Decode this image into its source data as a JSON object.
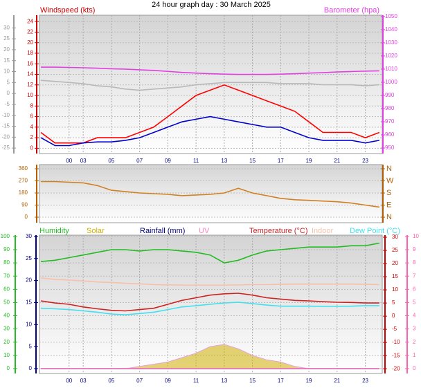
{
  "chart_data": [
    {
      "type": "line",
      "title": "24 hour graph day : 30 March 2025",
      "ylabel": "Windspeed (kts)",
      "y2label": "Barometer (hpa)",
      "x": [
        -2,
        -1,
        0,
        1,
        2,
        3,
        4,
        5,
        6,
        7,
        8,
        9,
        10,
        11,
        12,
        13,
        14,
        15,
        16,
        17,
        18,
        19,
        20,
        21,
        22
      ],
      "xlim": [
        -2.1,
        22.2
      ],
      "xticks": [
        {
          "value": 0,
          "label": "00"
        },
        {
          "value": 1,
          "label": "03"
        },
        {
          "value": 3,
          "label": "05"
        },
        {
          "value": 5,
          "label": "07"
        },
        {
          "value": 7,
          "label": "09"
        },
        {
          "value": 9,
          "label": "11"
        },
        {
          "value": 11,
          "label": "13"
        },
        {
          "value": 13,
          "label": "15"
        },
        {
          "value": 15,
          "label": "17"
        },
        {
          "value": 17,
          "label": "19"
        },
        {
          "value": 19,
          "label": "21"
        },
        {
          "value": 21,
          "label": "23"
        }
      ],
      "ylim": [
        -1,
        25.2
      ],
      "yticks": [
        0,
        2,
        4,
        6,
        8,
        10,
        12,
        14,
        16,
        18,
        20,
        22,
        24
      ],
      "ycolor": "#cc0000",
      "y2lim": [
        945.8,
        1051
      ],
      "y2ticks": [
        950,
        960,
        970,
        980,
        990,
        1000,
        1010,
        1020,
        1030,
        1040,
        1050
      ],
      "y2color": "#e040e0",
      "y3lim": [
        -27.5,
        35.8
      ],
      "y3ticks": [
        -25,
        -20,
        -15,
        -10,
        -5,
        0,
        5,
        10,
        15,
        20,
        25,
        30
      ],
      "y3color": "#999999",
      "grid": true,
      "series": [
        {
          "color": "#b8b8b8",
          "axis": "y3",
          "values": [
            6,
            5.5,
            5,
            4.5,
            3.5,
            3,
            2,
            1.5,
            2,
            2.5,
            3,
            4,
            4.5,
            5,
            5,
            5,
            5,
            4.5,
            4.5,
            4.5,
            4,
            4,
            4,
            3.5,
            4
          ]
        },
        {
          "color": "#e040e0",
          "axis": "y2",
          "values": [
            1011.5,
            1011.5,
            1011.3,
            1011,
            1010.7,
            1010.3,
            1010,
            1009.5,
            1009,
            1008.3,
            1007.5,
            1007,
            1006.5,
            1006.2,
            1006,
            1006,
            1006,
            1006.2,
            1006.5,
            1007,
            1007.3,
            1007.8,
            1008.2,
            1008.5,
            1008.7
          ]
        },
        {
          "color": "#ff0000",
          "values": [
            3,
            1,
            1,
            1,
            2,
            2,
            2,
            3,
            4,
            6,
            8,
            10,
            11,
            12,
            11,
            10,
            9,
            8,
            7,
            5,
            3,
            3,
            3,
            2,
            3
          ]
        },
        {
          "color": "#0000cc",
          "values": [
            2,
            0.5,
            0.5,
            1,
            1.2,
            1.2,
            1.5,
            2,
            3,
            4,
            5,
            5.5,
            6,
            5.5,
            5,
            4.5,
            4,
            4,
            3,
            2,
            1.5,
            1.5,
            1.5,
            1,
            1.5
          ]
        }
      ]
    },
    {
      "type": "line",
      "x": [
        -2,
        -1,
        0,
        1,
        2,
        3,
        4,
        5,
        6,
        7,
        8,
        9,
        10,
        11,
        12,
        13,
        14,
        15,
        16,
        17,
        18,
        19,
        20,
        21,
        22
      ],
      "xlim": [
        -2.1,
        22.2
      ],
      "ylim": [
        -41,
        391
      ],
      "yticks": [
        0,
        90,
        180,
        270,
        360
      ],
      "ycolor": "#b06000",
      "y2lim": [
        -41,
        391
      ],
      "y2ticks": [
        {
          "value": 0,
          "label": "N"
        },
        {
          "value": 90,
          "label": "E"
        },
        {
          "value": 180,
          "label": "S"
        },
        {
          "value": 270,
          "label": "W"
        },
        {
          "value": 360,
          "label": "N"
        }
      ],
      "y2color": "#b06000",
      "grid": true,
      "series": [
        {
          "color": "#d08020",
          "values": [
            265,
            265,
            260,
            255,
            235,
            200,
            190,
            180,
            175,
            170,
            160,
            165,
            170,
            180,
            215,
            180,
            160,
            140,
            130,
            125,
            120,
            115,
            105,
            90,
            75
          ]
        }
      ]
    },
    {
      "type": "line",
      "x": [
        -2,
        -1,
        0,
        1,
        2,
        3,
        4,
        5,
        6,
        7,
        8,
        9,
        10,
        11,
        12,
        13,
        14,
        15,
        16,
        17,
        18,
        19,
        20,
        21,
        22
      ],
      "xlim": [
        -2.1,
        22.2
      ],
      "xticks": [
        {
          "value": 0,
          "label": "00"
        },
        {
          "value": 1,
          "label": "03"
        },
        {
          "value": 3,
          "label": "05"
        },
        {
          "value": 5,
          "label": "07"
        },
        {
          "value": 7,
          "label": "09"
        },
        {
          "value": 9,
          "label": "11"
        },
        {
          "value": 11,
          "label": "13"
        },
        {
          "value": 13,
          "label": "15"
        },
        {
          "value": 15,
          "label": "17"
        },
        {
          "value": 17,
          "label": "19"
        },
        {
          "value": 19,
          "label": "21"
        },
        {
          "value": 21,
          "label": "23"
        }
      ],
      "ylim": [
        -3.7,
        101
      ],
      "yticks": [
        0,
        10,
        20,
        30,
        40,
        50,
        60,
        70,
        80,
        90,
        100
      ],
      "ycolor": "#22bb22",
      "y2lim": [
        -1.1,
        30.3
      ],
      "y2ticks": [
        0,
        5,
        10,
        15,
        20,
        25,
        30
      ],
      "y2color": "#000080",
      "y3lim": [
        -21.8,
        30.8
      ],
      "y3ticks": [
        -20,
        -15,
        -10,
        -5,
        0,
        5,
        10,
        15,
        20,
        25,
        30
      ],
      "y3color": "#cc0000",
      "y4lim": [
        -0.37,
        10.1
      ],
      "y4ticks": [
        0,
        1,
        2,
        3,
        4,
        5,
        6,
        7,
        8,
        9,
        10
      ],
      "y4color": "#ff60b0",
      "grid": true,
      "series": [
        {
          "name": "Humidity",
          "color": "#22bb22",
          "values": [
            81,
            82,
            84,
            86,
            88,
            90,
            90,
            89,
            90,
            90,
            89,
            88,
            86,
            80,
            82,
            86,
            89,
            90,
            91,
            92,
            92,
            92,
            93,
            93,
            95
          ]
        },
        {
          "name": "Solar",
          "color": "#d0b000",
          "axis": "y2",
          "fill": true,
          "values": [
            0,
            0,
            0,
            0,
            0,
            0,
            0,
            0.5,
            1,
            1.5,
            2.5,
            3.5,
            5,
            5.5,
            4.5,
            3,
            2,
            1.5,
            0.5,
            0,
            0,
            0,
            0,
            0,
            0
          ]
        },
        {
          "name": "Rainfall (mm)",
          "color": "#000080",
          "axis": "y2",
          "values": [
            0,
            0,
            0,
            0,
            0,
            0,
            0,
            0,
            0,
            0,
            0,
            0,
            0,
            0,
            0,
            0,
            0,
            0,
            0,
            0,
            0,
            0,
            0,
            0,
            0
          ]
        },
        {
          "name": "UV",
          "color": "#ff80c0",
          "axis": "y4",
          "values": [
            0,
            0,
            0,
            0,
            0,
            0,
            0,
            0,
            0,
            0,
            0,
            0,
            0,
            0,
            0,
            0,
            0,
            0,
            0,
            0,
            0,
            0,
            0,
            0,
            0
          ]
        },
        {
          "name": "Temperature (°C)",
          "color": "#cc2222",
          "axis": "y3",
          "values": [
            5.8,
            5,
            4.5,
            3.5,
            2.8,
            2.2,
            2,
            2.5,
            3,
            4.5,
            6,
            7,
            8,
            8.5,
            8.7,
            8,
            7,
            6.5,
            6,
            5.8,
            5.5,
            5.3,
            5.2,
            5,
            5
          ]
        },
        {
          "name": "Indoor",
          "color": "#f8c0a8",
          "axis": "y3",
          "values": [
            14.5,
            14,
            13.7,
            13.4,
            13,
            12.8,
            12.5,
            12.3,
            12,
            11.9,
            11.8,
            11.8,
            11.8,
            11.8,
            11.9,
            12,
            12,
            12.1,
            12.2,
            12.2,
            12.2,
            12.2,
            12.2,
            12.1,
            12
          ]
        },
        {
          "name": "Dew Point (°C)",
          "color": "#40e0f0",
          "axis": "y3",
          "values": [
            3,
            2.8,
            2.5,
            2,
            1.5,
            0.8,
            0.5,
            1,
            1.5,
            2.5,
            3.5,
            4,
            4.5,
            5,
            5.3,
            4.8,
            4.2,
            3.8,
            3.8,
            3.8,
            3.7,
            3.7,
            3.8,
            4,
            4
          ]
        }
      ]
    }
  ]
}
